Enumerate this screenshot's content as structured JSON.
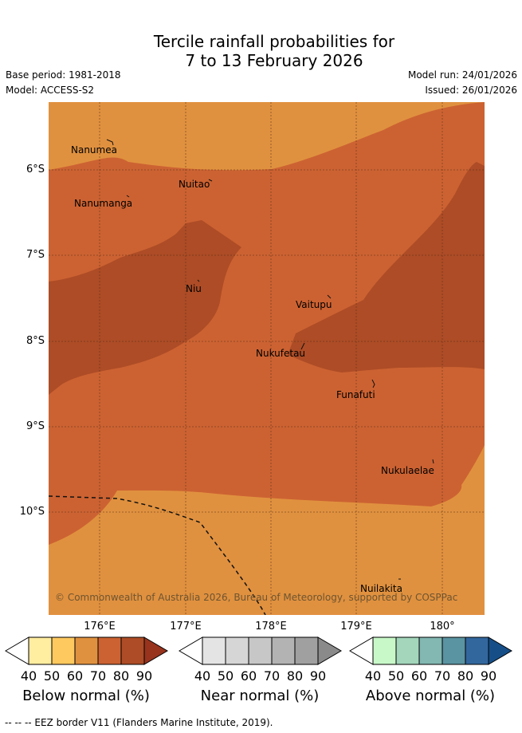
{
  "header": {
    "title_line1": "Tercile rainfall probabilities for",
    "title_line2": "7 to 13 February 2026",
    "base_period": "Base period: 1981-2018",
    "model": "Model: ACCESS-S2",
    "model_run": "Model run: 24/01/2026",
    "issued": "Issued: 26/01/2026"
  },
  "axes": {
    "lat_labels": [
      "6°S",
      "7°S",
      "8°S",
      "9°S",
      "10°S"
    ],
    "lon_labels": [
      "176°E",
      "177°E",
      "178°E",
      "179°E",
      "180°"
    ]
  },
  "places": [
    "Nanumea",
    "Nuitao",
    "Nanumanga",
    "Niu",
    "Vaitupu",
    "Nukufetau",
    "Funafuti",
    "Nukulaelae",
    "Nuilakita"
  ],
  "copyright": "© Commonwealth of Australia 2026, Bureau of Meteorology, supported by COSPPac",
  "legends": [
    {
      "title": "Below normal (%)",
      "colors": [
        "#ffffff",
        "#ffeda0",
        "#fec95f",
        "#e0913f",
        "#cc6232",
        "#ad4c26",
        "#98331e"
      ]
    },
    {
      "title": "Near normal (%)",
      "colors": [
        "#ffffff",
        "#e4e4e4",
        "#d6d6d6",
        "#c7c7c7",
        "#b3b3b3",
        "#a0a0a0",
        "#8a8a8a"
      ]
    },
    {
      "title": "Above normal (%)",
      "colors": [
        "#ffffff",
        "#c8f8c8",
        "#a3d6bb",
        "#82b7b2",
        "#5a93a1",
        "#32679e",
        "#164f88"
      ]
    }
  ],
  "tick_labels": [
    "40",
    "50",
    "60",
    "70",
    "80",
    "90"
  ],
  "map_colors": {
    "band60": "#e0913f",
    "band70": "#cc6232",
    "band80": "#ad4c26"
  },
  "footnote": "--  --  -- EEZ border V11 (Flanders Marine Institute, 2019)."
}
